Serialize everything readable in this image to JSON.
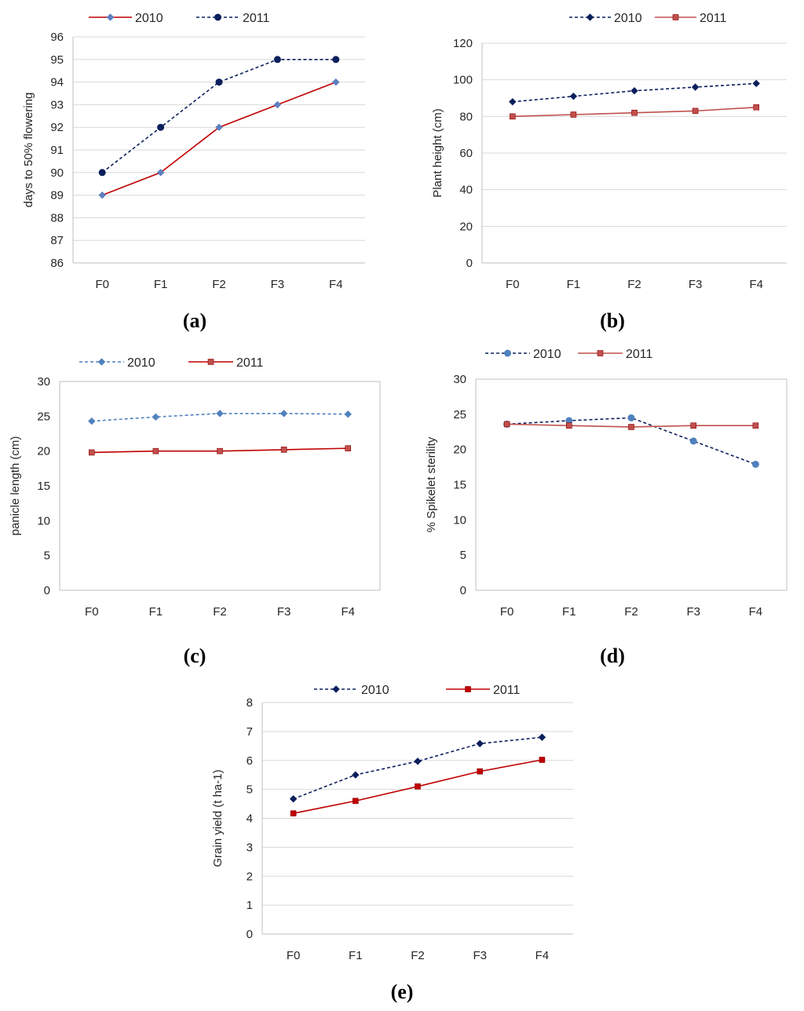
{
  "figure": {
    "captions": [
      "(a)",
      "(b)",
      "(c)",
      "(d)",
      "(e)"
    ]
  },
  "chart_data": [
    {
      "id": "a",
      "type": "line",
      "caption": "(a)",
      "categories": [
        "F0",
        "F1",
        "F2",
        "F3",
        "F4"
      ],
      "ylabel": "days to 50% flowering",
      "xlabel": "",
      "ylim": [
        86,
        96
      ],
      "yticks": [
        86,
        87,
        88,
        89,
        90,
        91,
        92,
        93,
        94,
        95,
        96
      ],
      "grid": true,
      "legend": "top-left",
      "series": [
        {
          "name": "2010",
          "values": [
            89,
            90,
            92,
            93,
            94
          ],
          "color": "#c00000",
          "line_style": "solid",
          "marker": "diamond",
          "marker_color": "#5b7fbf"
        },
        {
          "name": "2011",
          "values": [
            90,
            92,
            94,
            95,
            95
          ],
          "color": "#0c1f5c",
          "line_style": "dashed",
          "marker": "circle",
          "marker_color": "#0c1f5c"
        }
      ]
    },
    {
      "id": "b",
      "type": "line",
      "caption": "(b)",
      "categories": [
        "F0",
        "F1",
        "F2",
        "F3",
        "F4"
      ],
      "ylabel": "Plant height (cm)",
      "xlabel": "",
      "ylim": [
        0,
        120
      ],
      "yticks": [
        0,
        20,
        40,
        60,
        80,
        100,
        120
      ],
      "grid": true,
      "legend": "top-right",
      "series": [
        {
          "name": "2010",
          "values": [
            88,
            91,
            94,
            96,
            98
          ],
          "color": "#0c1f5c",
          "line_style": "dashed",
          "marker": "diamond",
          "marker_color": "#0c1f5c"
        },
        {
          "name": "2011",
          "values": [
            80,
            81,
            82,
            83,
            85
          ],
          "color": "#c0504d",
          "line_style": "solid",
          "marker": "square",
          "marker_color": "#c0504d"
        }
      ]
    },
    {
      "id": "c",
      "type": "line",
      "caption": "(c)",
      "categories": [
        "F0",
        "F1",
        "F2",
        "F3",
        "F4"
      ],
      "ylabel": "panicle length (cm)",
      "xlabel": "",
      "ylim": [
        0,
        30
      ],
      "yticks": [
        0,
        5,
        10,
        15,
        20,
        25,
        30
      ],
      "grid": false,
      "legend": "top",
      "series": [
        {
          "name": "2010",
          "values": [
            24.3,
            24.9,
            25.4,
            25.4,
            25.3
          ],
          "color": "#4f81bd",
          "line_style": "dashed",
          "marker": "diamond",
          "marker_color": "#4f81bd"
        },
        {
          "name": "2011",
          "values": [
            19.8,
            20.0,
            20.0,
            20.2,
            20.4
          ],
          "color": "#c00000",
          "line_style": "solid",
          "marker": "square",
          "marker_color": "#c0504d"
        }
      ]
    },
    {
      "id": "d",
      "type": "line",
      "caption": "(d)",
      "categories": [
        "F0",
        "F1",
        "F2",
        "F3",
        "F4"
      ],
      "ylabel": "% Spikelet sterility",
      "xlabel": "",
      "ylim": [
        0,
        30
      ],
      "yticks": [
        0,
        5,
        10,
        15,
        20,
        25,
        30
      ],
      "grid": false,
      "legend": "top",
      "series": [
        {
          "name": "2010",
          "values": [
            23.6,
            24.1,
            24.5,
            21.2,
            17.9
          ],
          "color": "#0c1f5c",
          "line_style": "dashed",
          "marker": "circle",
          "marker_color": "#4f81bd"
        },
        {
          "name": "2011",
          "values": [
            23.6,
            23.4,
            23.2,
            23.4,
            23.4
          ],
          "color": "#c0504d",
          "line_style": "solid",
          "marker": "square",
          "marker_color": "#c0504d"
        }
      ]
    },
    {
      "id": "e",
      "type": "line",
      "caption": "(e)",
      "categories": [
        "F0",
        "F1",
        "F2",
        "F3",
        "F4"
      ],
      "ylabel": "Grain yield (t ha-1)",
      "xlabel": "",
      "ylim": [
        0,
        8
      ],
      "yticks": [
        0,
        1,
        2,
        3,
        4,
        5,
        6,
        7,
        8
      ],
      "grid": true,
      "legend": "top",
      "series": [
        {
          "name": "2010",
          "values": [
            4.67,
            5.5,
            5.97,
            6.58,
            6.8
          ],
          "color": "#0c1f5c",
          "line_style": "dashed",
          "marker": "diamond",
          "marker_color": "#0c1f5c"
        },
        {
          "name": "2011",
          "values": [
            4.17,
            4.6,
            5.1,
            5.62,
            6.02
          ],
          "color": "#c00000",
          "line_style": "solid",
          "marker": "square",
          "marker_color": "#c00000"
        }
      ]
    }
  ]
}
